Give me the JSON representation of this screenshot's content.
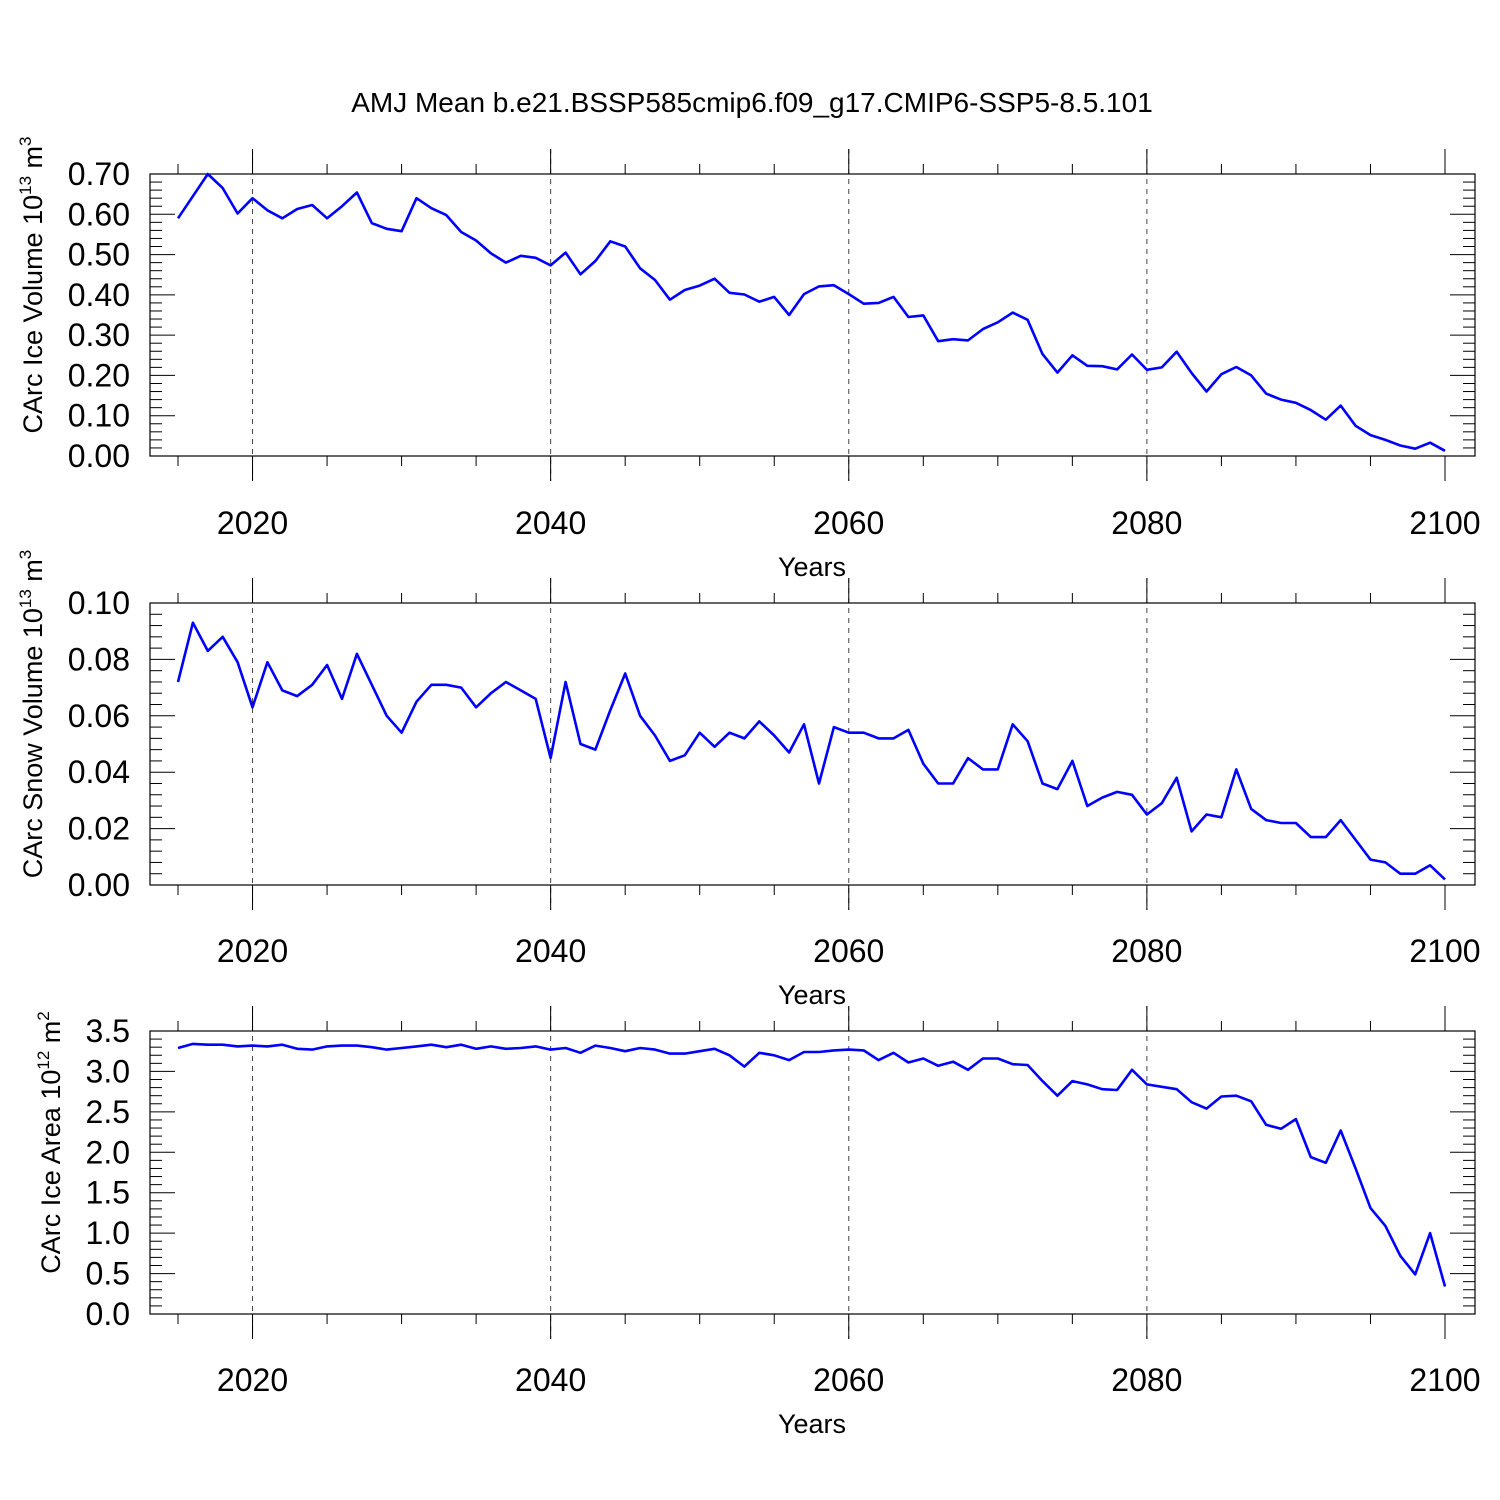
{
  "figure_title": "AMJ Mean b.e21.BSSP585cmip6.f09_g17.CMIP6-SSP5-8.5.101",
  "line_color": "#0000ff",
  "chart_data": [
    {
      "type": "line",
      "title": "",
      "xlabel": "Years",
      "ylabel": "CArc Ice Volume 10",
      "ylabel_exp": "13",
      "ylabel_unit": " m",
      "ylabel_unit_exp": "3",
      "xlim": [
        2015,
        2100
      ],
      "ylim": [
        0,
        0.7
      ],
      "xticks": [
        2020,
        2040,
        2060,
        2080,
        2100
      ],
      "yticks": [
        "0.00",
        "0.10",
        "0.20",
        "0.30",
        "0.40",
        "0.50",
        "0.60",
        "0.70"
      ],
      "ytick_values": [
        0,
        0.1,
        0.2,
        0.3,
        0.4,
        0.5,
        0.6,
        0.7
      ],
      "grid": "dashed vertical at major x ticks",
      "x_start": 2015,
      "series": [
        {
          "values": [
            0.59,
            0.645,
            0.7,
            0.665,
            0.602,
            0.64,
            0.61,
            0.59,
            0.613,
            0.623,
            0.59,
            0.62,
            0.654,
            0.578,
            0.564,
            0.558,
            0.64,
            0.615,
            0.598,
            0.556,
            0.535,
            0.503,
            0.48,
            0.497,
            0.492,
            0.473,
            0.505,
            0.451,
            0.484,
            0.533,
            0.52,
            0.466,
            0.437,
            0.388,
            0.412,
            0.423,
            0.44,
            0.405,
            0.401,
            0.383,
            0.395,
            0.35,
            0.402,
            0.421,
            0.424,
            0.402,
            0.378,
            0.38,
            0.395,
            0.345,
            0.349,
            0.285,
            0.29,
            0.287,
            0.315,
            0.332,
            0.356,
            0.338,
            0.253,
            0.207,
            0.25,
            0.224,
            0.223,
            0.215,
            0.252,
            0.214,
            0.22,
            0.259,
            0.206,
            0.16,
            0.203,
            0.221,
            0.2,
            0.155,
            0.14,
            0.132,
            0.114,
            0.09,
            0.125,
            0.075,
            0.052,
            0.04,
            0.026,
            0.018,
            0.033,
            0.013
          ]
        }
      ]
    },
    {
      "type": "line",
      "title": "",
      "xlabel": "Years",
      "ylabel": "CArc Snow Volume 10",
      "ylabel_exp": "13",
      "ylabel_unit": " m",
      "ylabel_unit_exp": "3",
      "xlim": [
        2015,
        2100
      ],
      "ylim": [
        0,
        0.1
      ],
      "xticks": [
        2020,
        2040,
        2060,
        2080,
        2100
      ],
      "yticks": [
        "0.00",
        "0.02",
        "0.04",
        "0.06",
        "0.08",
        "0.10"
      ],
      "ytick_values": [
        0,
        0.02,
        0.04,
        0.06,
        0.08,
        0.1
      ],
      "grid": "dashed vertical at major x ticks",
      "x_start": 2015,
      "series": [
        {
          "values": [
            0.072,
            0.093,
            0.083,
            0.088,
            0.079,
            0.063,
            0.079,
            0.069,
            0.067,
            0.071,
            0.078,
            0.066,
            0.082,
            0.071,
            0.06,
            0.054,
            0.065,
            0.071,
            0.071,
            0.07,
            0.063,
            0.068,
            0.072,
            0.069,
            0.066,
            0.045,
            0.072,
            0.05,
            0.048,
            0.062,
            0.075,
            0.06,
            0.053,
            0.044,
            0.046,
            0.054,
            0.049,
            0.054,
            0.052,
            0.058,
            0.053,
            0.047,
            0.057,
            0.036,
            0.056,
            0.054,
            0.054,
            0.052,
            0.052,
            0.055,
            0.043,
            0.036,
            0.036,
            0.045,
            0.041,
            0.041,
            0.057,
            0.051,
            0.036,
            0.034,
            0.044,
            0.028,
            0.031,
            0.033,
            0.032,
            0.025,
            0.029,
            0.038,
            0.019,
            0.025,
            0.024,
            0.041,
            0.027,
            0.023,
            0.022,
            0.022,
            0.017,
            0.017,
            0.023,
            0.016,
            0.009,
            0.008,
            0.004,
            0.004,
            0.007,
            0.002
          ]
        }
      ]
    },
    {
      "type": "line",
      "title": "",
      "xlabel": "Years",
      "ylabel": "CArc Ice Area 10",
      "ylabel_exp": "12",
      "ylabel_unit": " m",
      "ylabel_unit_exp": "2",
      "xlim": [
        2015,
        2100
      ],
      "ylim": [
        0,
        3.5
      ],
      "xticks": [
        2020,
        2040,
        2060,
        2080,
        2100
      ],
      "yticks": [
        "0.0",
        "0.5",
        "1.0",
        "1.5",
        "2.0",
        "2.5",
        "3.0",
        "3.5"
      ],
      "ytick_values": [
        0,
        0.5,
        1.0,
        1.5,
        2.0,
        2.5,
        3.0,
        3.5
      ],
      "grid": "dashed vertical at major x ticks",
      "x_start": 2015,
      "series": [
        {
          "values": [
            3.29,
            3.34,
            3.33,
            3.33,
            3.31,
            3.32,
            3.31,
            3.33,
            3.28,
            3.27,
            3.31,
            3.32,
            3.32,
            3.3,
            3.27,
            3.29,
            3.31,
            3.33,
            3.3,
            3.33,
            3.28,
            3.31,
            3.28,
            3.29,
            3.31,
            3.27,
            3.29,
            3.23,
            3.32,
            3.29,
            3.25,
            3.29,
            3.27,
            3.22,
            3.22,
            3.25,
            3.28,
            3.2,
            3.06,
            3.23,
            3.2,
            3.14,
            3.24,
            3.24,
            3.26,
            3.27,
            3.26,
            3.14,
            3.23,
            3.11,
            3.16,
            3.07,
            3.12,
            3.02,
            3.16,
            3.16,
            3.09,
            3.08,
            2.88,
            2.7,
            2.88,
            2.84,
            2.78,
            2.77,
            3.02,
            2.84,
            2.81,
            2.78,
            2.62,
            2.54,
            2.69,
            2.7,
            2.63,
            2.34,
            2.29,
            2.41,
            1.94,
            1.87,
            2.27,
            1.8,
            1.31,
            1.09,
            0.72,
            0.49,
            1.0,
            0.34
          ]
        }
      ]
    }
  ]
}
